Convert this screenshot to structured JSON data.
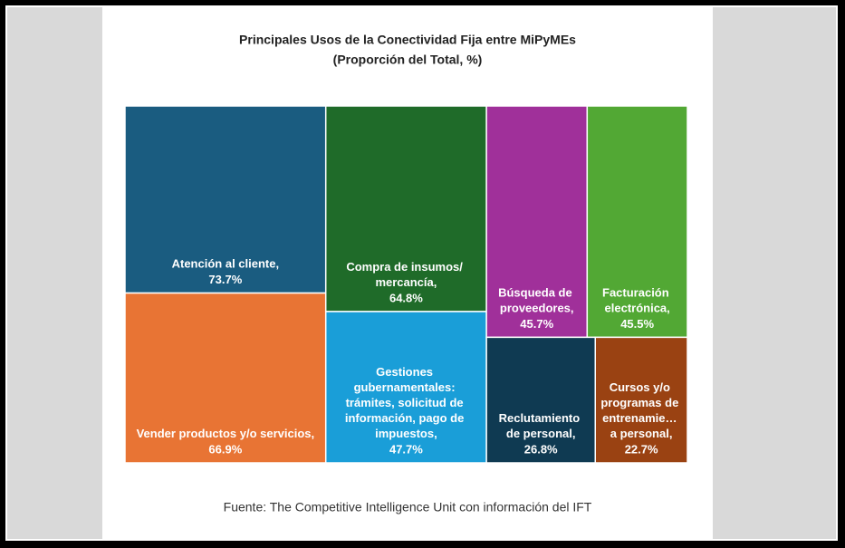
{
  "chart_data": {
    "type": "treemap",
    "title": "Principales Usos de la Conectividad Fija entre MiPyMEs",
    "subtitle": "(Proporción del Total, %)",
    "source": "Fuente: The Competitive Intelligence Unit con información del IFT",
    "categories": [
      "Atención al cliente,",
      "Vender productos y/o servicios,",
      "Compra de insumos/ mercancía,",
      "Gestiones gubernamentales: trámites, solicitud de información, pago de impuestos,",
      "Búsqueda de proveedores,",
      "Facturación electrónica,",
      "Reclutamiento de personal,",
      "Cursos y/o programas de entrenamie… a personal,"
    ],
    "values": [
      73.7,
      66.9,
      64.8,
      47.7,
      45.7,
      45.5,
      26.8,
      22.7
    ],
    "value_labels": [
      "73.7%",
      "66.9%",
      "64.8%",
      "47.7%",
      "45.7%",
      "45.5%",
      "26.8%",
      "22.7%"
    ],
    "colors": [
      "#1a5c80",
      "#e87434",
      "#1f6b29",
      "#1a9ed8",
      "#a0309a",
      "#52a834",
      "#0f3a52",
      "#9a4212"
    ]
  }
}
